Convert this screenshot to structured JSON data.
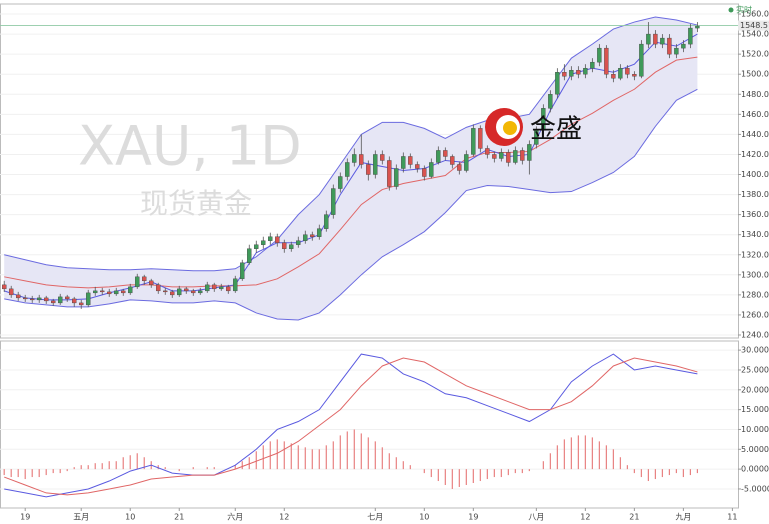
{
  "chart_data": [
    {
      "type": "candlestick",
      "title": "XAU, 1D",
      "subtitle": "现货黄金",
      "brand": "金盛",
      "mode_label": "实时",
      "up_color": "#3f9a5a",
      "down_color": "#d9534f",
      "candles": [
        [
          1290,
          1294,
          1283,
          1286
        ],
        [
          1286,
          1289,
          1277,
          1280
        ],
        [
          1280,
          1283,
          1274,
          1277
        ],
        [
          1277,
          1280,
          1273,
          1276
        ],
        [
          1276,
          1279,
          1272,
          1275
        ],
        [
          1275,
          1280,
          1272,
          1277
        ],
        [
          1277,
          1279,
          1271,
          1274
        ],
        [
          1274,
          1276,
          1269,
          1272
        ],
        [
          1272,
          1281,
          1270,
          1278
        ],
        [
          1278,
          1280,
          1273,
          1276
        ],
        [
          1276,
          1278,
          1268,
          1272
        ],
        [
          1272,
          1275,
          1266,
          1270
        ],
        [
          1270,
          1285,
          1268,
          1282
        ],
        [
          1282,
          1288,
          1279,
          1284
        ],
        [
          1284,
          1287,
          1280,
          1283
        ],
        [
          1283,
          1286,
          1278,
          1281
        ],
        [
          1281,
          1287,
          1279,
          1284
        ],
        [
          1284,
          1286,
          1279,
          1282
        ],
        [
          1282,
          1291,
          1280,
          1288
        ],
        [
          1288,
          1301,
          1286,
          1298
        ],
        [
          1298,
          1300,
          1290,
          1294
        ],
        [
          1294,
          1296,
          1287,
          1290
        ],
        [
          1290,
          1292,
          1281,
          1284
        ],
        [
          1284,
          1287,
          1280,
          1283
        ],
        [
          1283,
          1285,
          1277,
          1280
        ],
        [
          1280,
          1289,
          1278,
          1286
        ],
        [
          1286,
          1288,
          1281,
          1284
        ],
        [
          1284,
          1286,
          1279,
          1282
        ],
        [
          1282,
          1287,
          1280,
          1284
        ],
        [
          1284,
          1293,
          1282,
          1290
        ],
        [
          1290,
          1292,
          1283,
          1286
        ],
        [
          1286,
          1291,
          1284,
          1288
        ],
        [
          1288,
          1290,
          1281,
          1284
        ],
        [
          1284,
          1299,
          1282,
          1296
        ],
        [
          1296,
          1315,
          1294,
          1312
        ],
        [
          1312,
          1330,
          1310,
          1326
        ],
        [
          1326,
          1334,
          1322,
          1330
        ],
        [
          1330,
          1338,
          1326,
          1334
        ],
        [
          1334,
          1342,
          1330,
          1338
        ],
        [
          1338,
          1341,
          1328,
          1332
        ],
        [
          1332,
          1335,
          1322,
          1326
        ],
        [
          1326,
          1333,
          1323,
          1330
        ],
        [
          1330,
          1338,
          1327,
          1334
        ],
        [
          1334,
          1344,
          1331,
          1340
        ],
        [
          1340,
          1343,
          1334,
          1338
        ],
        [
          1338,
          1350,
          1335,
          1346
        ],
        [
          1346,
          1364,
          1343,
          1360
        ],
        [
          1360,
          1390,
          1356,
          1386
        ],
        [
          1386,
          1402,
          1382,
          1398
        ],
        [
          1398,
          1416,
          1394,
          1412
        ],
        [
          1412,
          1426,
          1408,
          1420
        ],
        [
          1420,
          1440,
          1406,
          1410
        ],
        [
          1410,
          1414,
          1394,
          1400
        ],
        [
          1400,
          1424,
          1396,
          1420
        ],
        [
          1420,
          1424,
          1410,
          1414
        ],
        [
          1414,
          1418,
          1384,
          1388
        ],
        [
          1388,
          1410,
          1385,
          1406
        ],
        [
          1406,
          1422,
          1402,
          1418
        ],
        [
          1418,
          1421,
          1406,
          1410
        ],
        [
          1410,
          1413,
          1402,
          1406
        ],
        [
          1406,
          1409,
          1394,
          1398
        ],
        [
          1398,
          1416,
          1396,
          1412
        ],
        [
          1412,
          1428,
          1410,
          1424
        ],
        [
          1424,
          1427,
          1414,
          1418
        ],
        [
          1418,
          1420,
          1406,
          1410
        ],
        [
          1410,
          1413,
          1400,
          1404
        ],
        [
          1404,
          1424,
          1402,
          1420
        ],
        [
          1420,
          1450,
          1418,
          1446
        ],
        [
          1446,
          1449,
          1422,
          1426
        ],
        [
          1426,
          1429,
          1416,
          1420
        ],
        [
          1420,
          1423,
          1412,
          1416
        ],
        [
          1416,
          1426,
          1413,
          1422
        ],
        [
          1422,
          1425,
          1408,
          1412
        ],
        [
          1412,
          1428,
          1410,
          1424
        ],
        [
          1424,
          1427,
          1410,
          1414
        ],
        [
          1414,
          1434,
          1400,
          1430
        ],
        [
          1430,
          1448,
          1426,
          1444
        ],
        [
          1444,
          1470,
          1440,
          1466
        ],
        [
          1466,
          1484,
          1462,
          1480
        ],
        [
          1480,
          1506,
          1476,
          1502
        ],
        [
          1502,
          1510,
          1494,
          1498
        ],
        [
          1498,
          1508,
          1494,
          1504
        ],
        [
          1504,
          1508,
          1496,
          1500
        ],
        [
          1500,
          1510,
          1496,
          1506
        ],
        [
          1506,
          1516,
          1502,
          1512
        ],
        [
          1512,
          1530,
          1508,
          1526
        ],
        [
          1526,
          1529,
          1496,
          1500
        ],
        [
          1500,
          1504,
          1492,
          1496
        ],
        [
          1496,
          1510,
          1494,
          1506
        ],
        [
          1506,
          1509,
          1496,
          1500
        ],
        [
          1500,
          1503,
          1494,
          1498
        ],
        [
          1498,
          1534,
          1496,
          1530
        ],
        [
          1530,
          1552,
          1526,
          1540
        ],
        [
          1540,
          1544,
          1526,
          1530
        ],
        [
          1530,
          1540,
          1526,
          1536
        ],
        [
          1536,
          1540,
          1516,
          1520
        ],
        [
          1520,
          1530,
          1516,
          1526
        ],
        [
          1526,
          1534,
          1522,
          1530
        ],
        [
          1530,
          1550,
          1526,
          1546
        ],
        [
          1546,
          1552,
          1542,
          1548
        ]
      ],
      "x": [
        0,
        3,
        6,
        9,
        12,
        15,
        18,
        21,
        24,
        27,
        30,
        33,
        36,
        39,
        42,
        45,
        48,
        51,
        54,
        57,
        60,
        63,
        66,
        69,
        72,
        75,
        78,
        81,
        84,
        87,
        90,
        93,
        96,
        99
      ],
      "band_color": "#6b6be0",
      "band_fill": "#e6e6f5",
      "upper": [
        1320,
        1315,
        1310,
        1307,
        1306,
        1305,
        1305,
        1306,
        1305,
        1304,
        1304,
        1306,
        1318,
        1335,
        1360,
        1380,
        1410,
        1440,
        1452,
        1452,
        1446,
        1436,
        1447,
        1454,
        1456,
        1460,
        1488,
        1516,
        1530,
        1545,
        1552,
        1557,
        1554,
        1549
      ],
      "lower": [
        1276,
        1272,
        1270,
        1268,
        1268,
        1271,
        1275,
        1274,
        1272,
        1272,
        1274,
        1272,
        1262,
        1256,
        1255,
        1262,
        1280,
        1300,
        1318,
        1330,
        1343,
        1362,
        1384,
        1389,
        1388,
        1385,
        1382,
        1383,
        1392,
        1402,
        1418,
        1448,
        1474,
        1485
      ],
      "series": [
        {
          "color": "#e06666",
          "values": [
            1298,
            1294,
            1290,
            1288,
            1287,
            1288,
            1290,
            1290,
            1288,
            1288,
            1289,
            1289,
            1290,
            1296,
            1308,
            1321,
            1345,
            1370,
            1385,
            1391,
            1395,
            1399,
            1416,
            1422,
            1422,
            1423,
            1435,
            1450,
            1461,
            1474,
            1485,
            1502,
            1514,
            1517
          ]
        },
        {
          "color": "#5a5ae0",
          "values": [
            1284,
            1277,
            1275,
            1275,
            1276,
            1282,
            1287,
            1293,
            1284,
            1284,
            1287,
            1290,
            1322,
            1332,
            1332,
            1340,
            1380,
            1412,
            1408,
            1404,
            1406,
            1414,
            1412,
            1425,
            1418,
            1420,
            1464,
            1500,
            1506,
            1502,
            1510,
            1532,
            1528,
            1540
          ]
        }
      ],
      "last_price": 1548.51,
      "xlim": [
        -0.6,
        104.8
      ],
      "ylim": [
        1237,
        1570
      ],
      "yticks": [
        {
          "value": 1240,
          "label": "1240.00"
        },
        {
          "value": 1260,
          "label": "1260.00"
        },
        {
          "value": 1280,
          "label": "1280.00"
        },
        {
          "value": 1300,
          "label": "1300.00"
        },
        {
          "value": 1320,
          "label": "1320.00"
        },
        {
          "value": 1340,
          "label": "1340.00"
        },
        {
          "value": 1360,
          "label": "1360.00"
        },
        {
          "value": 1380,
          "label": "1380.00"
        },
        {
          "value": 1400,
          "label": "1400.00"
        },
        {
          "value": 1420,
          "label": "1420.00"
        },
        {
          "value": 1440,
          "label": "1440.00"
        },
        {
          "value": 1460,
          "label": "1460.00"
        },
        {
          "value": 1480,
          "label": "1480.00"
        },
        {
          "value": 1500,
          "label": "1500.00"
        },
        {
          "value": 1520,
          "label": "1520.00"
        },
        {
          "value": 1540,
          "label": "1540.00"
        },
        {
          "value": 1560,
          "label": "1560.00"
        }
      ]
    },
    {
      "type": "macd",
      "hist_color": "#e88080",
      "histogram": [
        -1.5,
        -2,
        -2,
        -2.5,
        -2,
        -2,
        -1.5,
        -1,
        -1,
        -0.5,
        0.5,
        1,
        1,
        1.5,
        1.5,
        2,
        2,
        3,
        3.5,
        4,
        3,
        2,
        1,
        0.5,
        0,
        -0.5,
        0,
        0.5,
        0,
        0.5,
        0.5,
        0,
        0,
        1,
        2,
        3,
        4.5,
        6,
        7,
        7.5,
        7,
        6.5,
        6,
        5.5,
        5,
        5,
        6,
        7,
        8.5,
        9.5,
        10,
        9,
        8,
        7,
        5.5,
        4,
        3,
        2,
        1,
        0,
        -1,
        -2,
        -3,
        -4,
        -5,
        -4.5,
        -4,
        -3.5,
        -3,
        -2.5,
        -2,
        -2,
        -1.5,
        -1,
        -1,
        -0.5,
        0,
        2,
        4,
        6,
        7.5,
        8,
        8.5,
        8.5,
        8,
        7,
        6,
        5,
        3,
        1,
        -1,
        -2,
        -3,
        -2.5,
        -2,
        -1.5,
        -1,
        -2,
        -1.5,
        -1
      ],
      "x": [
        0,
        3,
        6,
        9,
        12,
        15,
        18,
        21,
        24,
        27,
        30,
        33,
        36,
        39,
        42,
        45,
        48,
        51,
        54,
        57,
        60,
        63,
        66,
        69,
        72,
        75,
        78,
        81,
        84,
        87,
        90,
        93,
        96,
        99
      ],
      "series": [
        {
          "color": "#5a5ae0",
          "values": [
            -5,
            -6,
            -7,
            -6,
            -5,
            -3,
            -0.5,
            1,
            -1,
            -1.5,
            -1.5,
            1,
            5,
            10,
            12,
            15,
            22,
            29,
            28,
            24,
            22,
            19,
            18,
            16,
            14,
            12,
            15,
            22,
            26,
            29,
            25,
            26,
            25,
            24
          ]
        },
        {
          "color": "#e06666",
          "values": [
            -2,
            -4,
            -6,
            -6.5,
            -6,
            -5,
            -4,
            -2.5,
            -2,
            -1.5,
            -1.5,
            0,
            2,
            4,
            7,
            11,
            15,
            21,
            26,
            28,
            27,
            24,
            21,
            19,
            17,
            15,
            15,
            17,
            21,
            26,
            28,
            27,
            26,
            24.5
          ]
        }
      ],
      "xlim": [
        -0.6,
        104.8
      ],
      "ylim": [
        -9.8,
        32.3
      ],
      "yticks": [
        {
          "value": -5,
          "label": "-5.0000"
        },
        {
          "value": 0,
          "label": "0.0000"
        },
        {
          "value": 5,
          "label": "5.0000"
        },
        {
          "value": 10,
          "label": "10.0000"
        },
        {
          "value": 15,
          "label": "15.0000"
        },
        {
          "value": 20,
          "label": "20.0000"
        },
        {
          "value": 25,
          "label": "25.0000"
        },
        {
          "value": 30,
          "label": "30.0000"
        }
      ],
      "xticks": [
        {
          "value": 3,
          "label": "19"
        },
        {
          "value": 11,
          "label": "五月"
        },
        {
          "value": 18,
          "label": "10"
        },
        {
          "value": 25,
          "label": "21"
        },
        {
          "value": 33,
          "label": "六月"
        },
        {
          "value": 40,
          "label": "12"
        },
        {
          "value": 53,
          "label": "七月"
        },
        {
          "value": 60,
          "label": "10"
        },
        {
          "value": 67,
          "label": "19"
        },
        {
          "value": 76,
          "label": "八月"
        },
        {
          "value": 83,
          "label": "12"
        },
        {
          "value": 90,
          "label": "21"
        },
        {
          "value": 97,
          "label": "九月"
        },
        {
          "value": 104,
          "label": "11"
        }
      ]
    }
  ]
}
